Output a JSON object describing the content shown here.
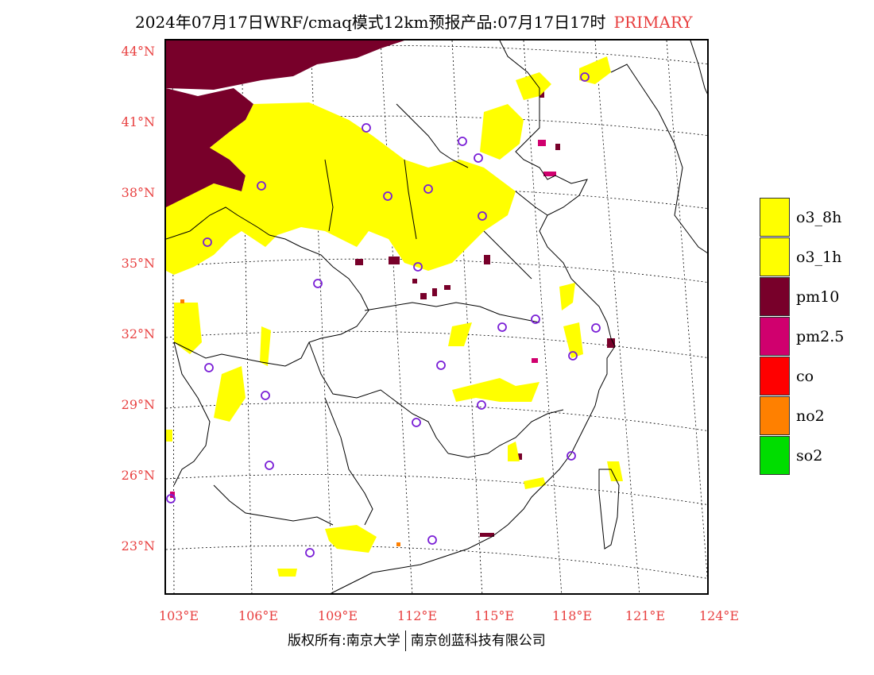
{
  "title": {
    "main": "2024年07月17日WRF/cmaq模式12km预报产品:07月17日17时",
    "tag": "PRIMARY"
  },
  "axes": {
    "lat_labels": [
      "44°N",
      "41°N",
      "38°N",
      "35°N",
      "32°N",
      "29°N",
      "26°N",
      "23°N"
    ],
    "lon_labels": [
      "103°E",
      "106°E",
      "109°E",
      "112°E",
      "115°E",
      "118°E",
      "121°E",
      "124°E"
    ]
  },
  "legend": {
    "items": [
      {
        "label": "o3_8h",
        "color": "#ffff00"
      },
      {
        "label": "o3_1h",
        "color": "#ffff00"
      },
      {
        "label": "pm10",
        "color": "#78002a"
      },
      {
        "label": "pm2.5",
        "color": "#d0006e"
      },
      {
        "label": "co",
        "color": "#ff0000"
      },
      {
        "label": "no2",
        "color": "#ff8000"
      },
      {
        "label": "so2",
        "color": "#00dd00"
      }
    ]
  },
  "footer": {
    "left": "版权所有:南京大学",
    "right": "南京创蓝科技有限公司"
  },
  "colors": {
    "label_red": "#e84040",
    "o3": "#ffff00",
    "pm10": "#78002a",
    "pm25": "#d0006e",
    "station_marker": "#7a1fd6"
  },
  "map": {
    "projection_lat_range": [
      "22°N",
      "44°N"
    ],
    "projection_lon_range": [
      "103°E",
      "124°E"
    ]
  }
}
